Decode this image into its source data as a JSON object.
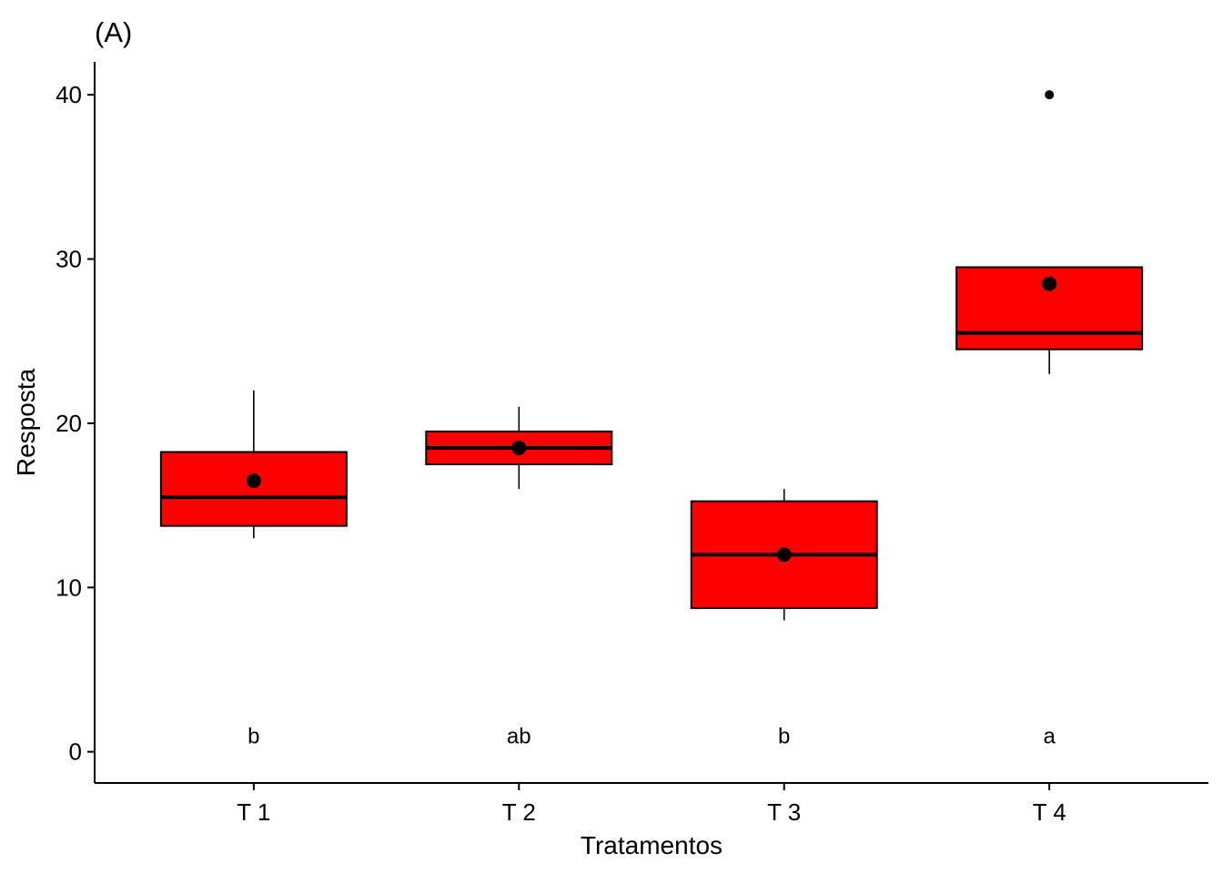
{
  "chart_data": {
    "type": "boxplot",
    "title": "(A)",
    "xlabel": "Tratamentos",
    "ylabel": "Resposta",
    "ylim": [
      -1.9,
      42
    ],
    "yticks": [
      0,
      10,
      20,
      30,
      40
    ],
    "ytick_labels": [
      "0",
      "10",
      "20",
      "30",
      "40"
    ],
    "categories": [
      "T 1",
      "T 2",
      "T 3",
      "T 4"
    ],
    "box_fill": "#ff0000",
    "grid": false,
    "legend": "none",
    "boxes": [
      {
        "category": "T 1",
        "whisker_low": 13,
        "q1": 13.75,
        "median": 15.5,
        "q3": 18.25,
        "whisker_high": 22,
        "mean": 16.5,
        "outliers": [],
        "letter": "b"
      },
      {
        "category": "T 2",
        "whisker_low": 16,
        "q1": 17.5,
        "median": 18.5,
        "q3": 19.5,
        "whisker_high": 21,
        "mean": 18.5,
        "outliers": [],
        "letter": "ab"
      },
      {
        "category": "T 3",
        "whisker_low": 8,
        "q1": 8.75,
        "median": 12,
        "q3": 15.25,
        "whisker_high": 16,
        "mean": 12,
        "outliers": [],
        "letter": "b"
      },
      {
        "category": "T 4",
        "whisker_low": 23,
        "q1": 24.5,
        "median": 25.5,
        "q3": 29.5,
        "whisker_high": 29.5,
        "mean": 28.5,
        "outliers": [
          40
        ],
        "letter": "a"
      }
    ],
    "letter_y": 1
  }
}
